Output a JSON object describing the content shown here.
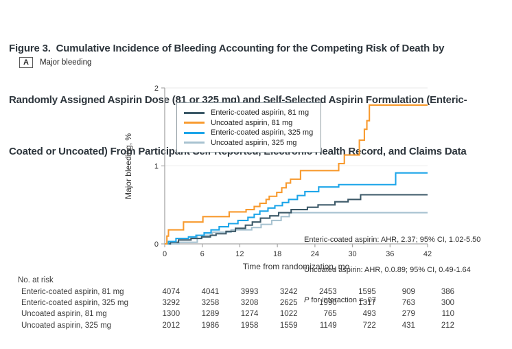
{
  "figure": {
    "title_lines": [
      "Figure 3.  Cumulative Incidence of Bleeding Accounting for the Competing Risk of Death by",
      "Randomly Assigned Aspirin Dose (81 or 325 mg) and Self-Selected Aspirin Formulation (Enteric-",
      "Coated or Uncoated) From Participant Self-Reported, Electronic Health Record, and Claims Data"
    ],
    "panel": {
      "letter": "A",
      "label": "Major bleeding"
    }
  },
  "chart_data": {
    "type": "line",
    "step": true,
    "xlabel": "Time from randomization, mo",
    "ylabel": "Major bleeding, %",
    "xlim": [
      0,
      42
    ],
    "ylim": [
      0,
      2
    ],
    "x_ticks": [
      0,
      6,
      12,
      18,
      24,
      30,
      36,
      42
    ],
    "y_ticks": [
      0,
      1,
      2
    ],
    "grid_y": [
      1,
      2
    ],
    "legend_position": "top-left-inside",
    "series": [
      {
        "name": "Enteric-coated aspirin, 81 mg",
        "color": "#3c5968",
        "points": [
          [
            0,
            0
          ],
          [
            0.9,
            0.02
          ],
          [
            2.2,
            0.05
          ],
          [
            4.2,
            0.07
          ],
          [
            5.9,
            0.09
          ],
          [
            7.3,
            0.11
          ],
          [
            8.2,
            0.13
          ],
          [
            9.8,
            0.16
          ],
          [
            11.3,
            0.2
          ],
          [
            12.9,
            0.24
          ],
          [
            14.0,
            0.28
          ],
          [
            15.3,
            0.33
          ],
          [
            16.8,
            0.36
          ],
          [
            18.2,
            0.4
          ],
          [
            20.2,
            0.44
          ],
          [
            22.8,
            0.47
          ],
          [
            24.5,
            0.5
          ],
          [
            27.2,
            0.54
          ],
          [
            29.3,
            0.57
          ],
          [
            31.3,
            0.63
          ],
          [
            42,
            0.63
          ]
        ]
      },
      {
        "name": "Uncoated aspirin, 81 mg",
        "color": "#f89a2e",
        "points": [
          [
            0,
            0
          ],
          [
            0.35,
            0.1
          ],
          [
            0.6,
            0.18
          ],
          [
            3.0,
            0.28
          ],
          [
            6.1,
            0.35
          ],
          [
            10.3,
            0.41
          ],
          [
            13.0,
            0.44
          ],
          [
            14.3,
            0.48
          ],
          [
            15.2,
            0.52
          ],
          [
            16.2,
            0.57
          ],
          [
            16.7,
            0.61
          ],
          [
            17.9,
            0.66
          ],
          [
            18.7,
            0.72
          ],
          [
            19.4,
            0.78
          ],
          [
            20.1,
            0.83
          ],
          [
            21.7,
            0.94
          ],
          [
            27.8,
            1.03
          ],
          [
            28.7,
            1.14
          ],
          [
            31.1,
            1.33
          ],
          [
            31.9,
            1.47
          ],
          [
            32.3,
            1.58
          ],
          [
            32.7,
            1.78
          ],
          [
            42,
            1.78
          ]
        ]
      },
      {
        "name": "Enteric-coated aspirin, 325 mg",
        "color": "#1ca5e9",
        "points": [
          [
            0,
            0
          ],
          [
            0.6,
            0.03
          ],
          [
            1.8,
            0.07
          ],
          [
            3.8,
            0.09
          ],
          [
            5.0,
            0.11
          ],
          [
            6.3,
            0.14
          ],
          [
            7.4,
            0.18
          ],
          [
            8.7,
            0.22
          ],
          [
            10.2,
            0.26
          ],
          [
            11.7,
            0.3
          ],
          [
            13.3,
            0.34
          ],
          [
            14.3,
            0.38
          ],
          [
            15.2,
            0.42
          ],
          [
            16.5,
            0.46
          ],
          [
            17.6,
            0.49
          ],
          [
            18.8,
            0.53
          ],
          [
            19.8,
            0.57
          ],
          [
            21.2,
            0.62
          ],
          [
            22.4,
            0.67
          ],
          [
            24.6,
            0.73
          ],
          [
            27.8,
            0.76
          ],
          [
            36.9,
            0.91
          ],
          [
            42,
            0.91
          ]
        ]
      },
      {
        "name": "Uncoated aspirin, 325 mg",
        "color": "#a7c2d0",
        "points": [
          [
            0,
            0
          ],
          [
            2.3,
            0.02
          ],
          [
            5.2,
            0.11
          ],
          [
            7.6,
            0.15
          ],
          [
            10.6,
            0.18
          ],
          [
            13.9,
            0.21
          ],
          [
            15.4,
            0.25
          ],
          [
            17.1,
            0.3
          ],
          [
            18.6,
            0.35
          ],
          [
            19.9,
            0.4
          ],
          [
            42,
            0.4
          ]
        ]
      }
    ],
    "draw_order": [
      3,
      0,
      2,
      1
    ],
    "annotation": {
      "line1": "Enteric-coated aspirin: AHR, 2.37; 95% CI, 1.02-5.50",
      "line2": "Uncoated aspirin: AHR, 0.0.89; 95% CI, 0.49-1.64",
      "line3_italic": "P",
      "line3_rest": " for interaction = .07"
    }
  },
  "risk_table": {
    "header": "No. at risk",
    "rows": [
      {
        "label": "Enteric-coated aspirin, 81 mg",
        "values": [
          "4074",
          "4041",
          "3993",
          "3242",
          "2453",
          "1595",
          "909",
          "386"
        ]
      },
      {
        "label": "Enteric-coated aspirin, 325 mg",
        "values": [
          "3292",
          "3258",
          "3208",
          "2625",
          "1990",
          "1317",
          "763",
          "300"
        ]
      },
      {
        "label": "Uncoated aspirin, 81 mg",
        "values": [
          "1300",
          "1289",
          "1274",
          "1022",
          "765",
          "493",
          "279",
          "110"
        ]
      },
      {
        "label": "Uncoated aspirin, 325 mg",
        "values": [
          "2012",
          "1986",
          "1958",
          "1559",
          "1149",
          "722",
          "431",
          "212"
        ]
      }
    ]
  },
  "colors": {
    "axis": "#a6a6a6",
    "grid": "#eaeaea",
    "tick_text": "#333333",
    "title_text": "#2d353c"
  }
}
